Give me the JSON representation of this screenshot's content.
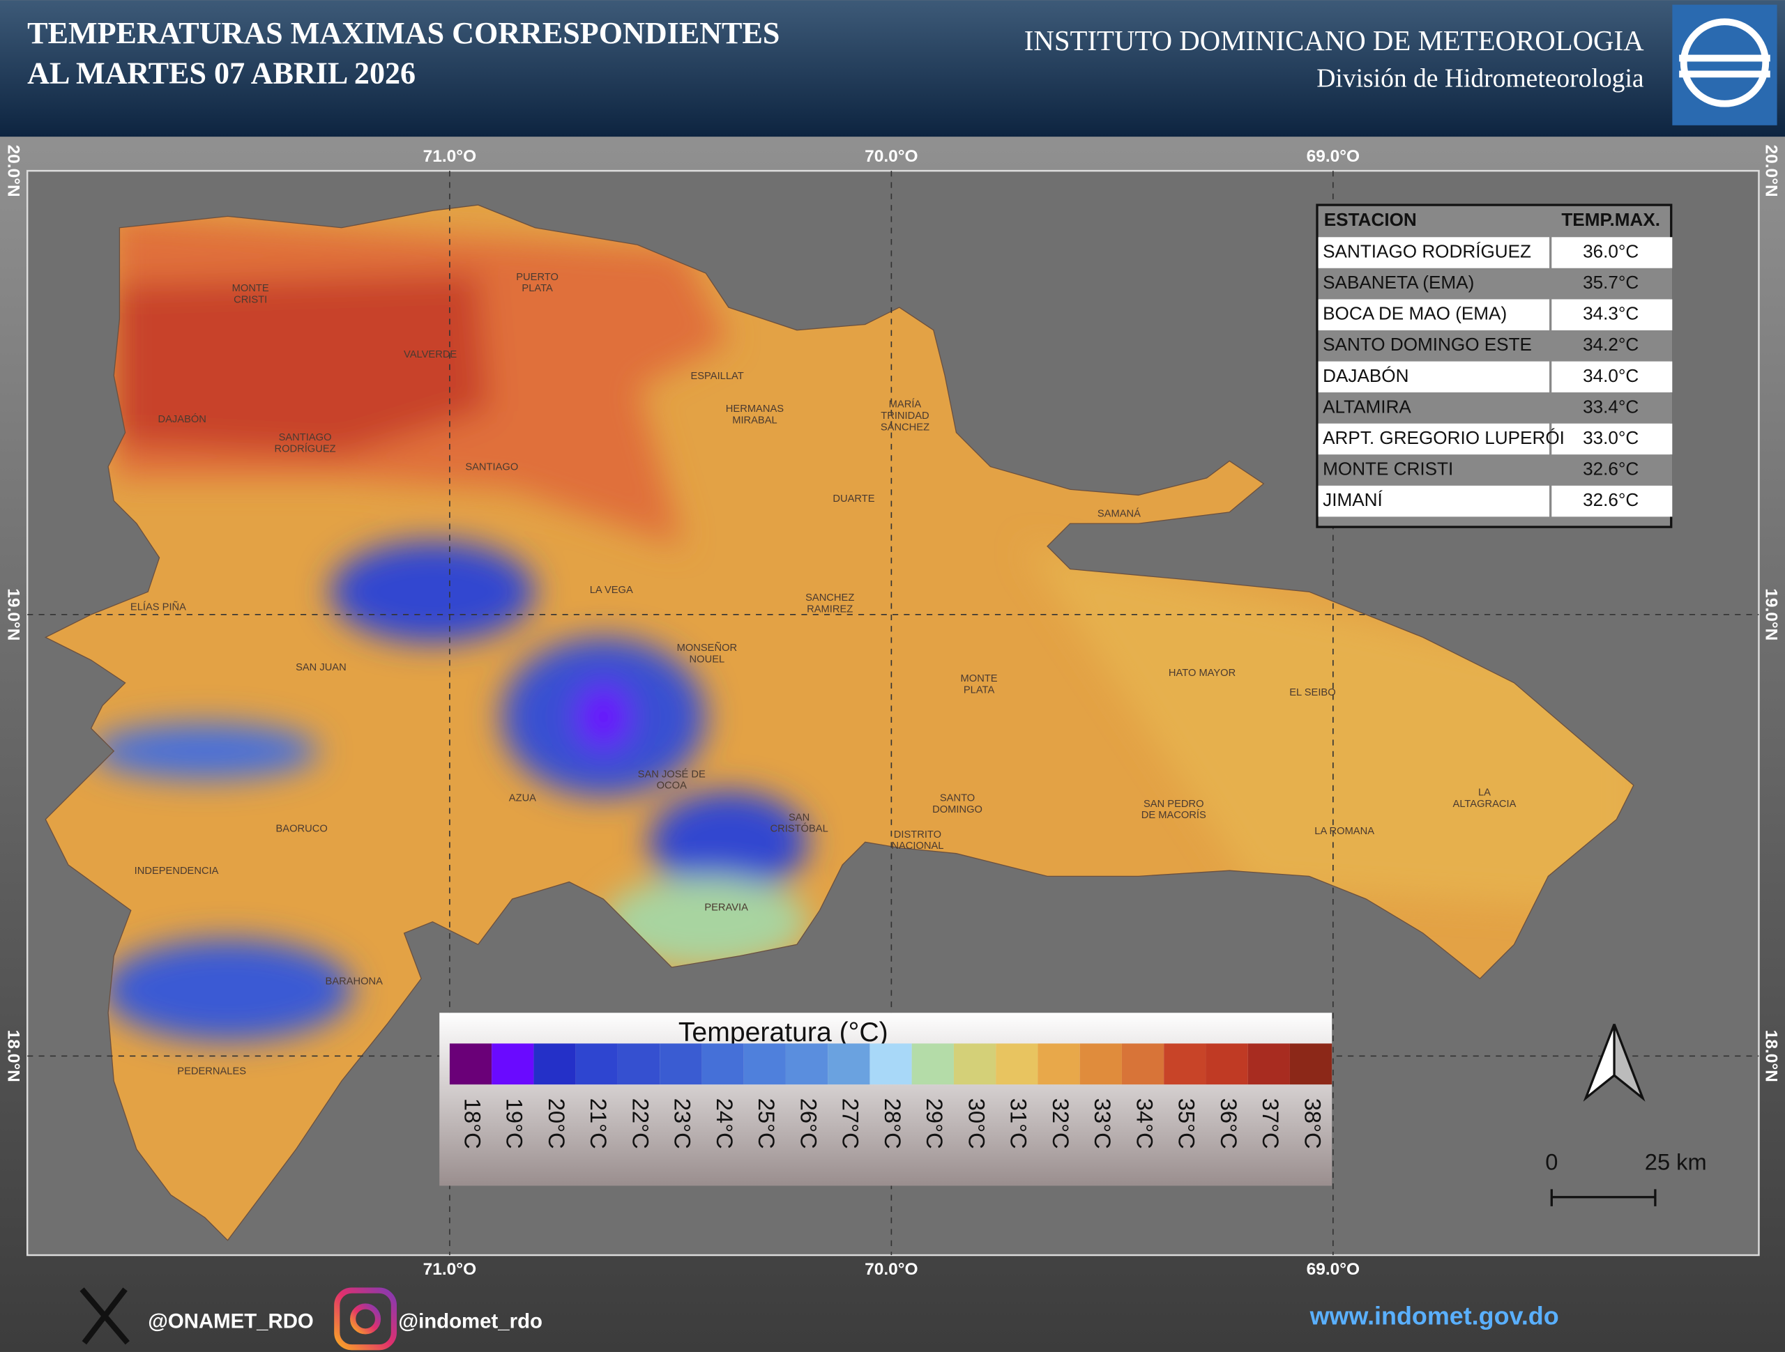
{
  "header": {
    "title": [
      "TEMPERATURAS MAXIMAS CORRESPONDIENTES",
      "AL MARTES 07  ABRIL 2026"
    ],
    "institute": "INSTITUTO DOMINICANO DE METEOROLOGIA",
    "division": "División de Hidrometeorologia"
  },
  "map": {
    "lon_labels": [
      "71.0°O",
      "70.0°O",
      "69.0°O"
    ],
    "lat_labels": [
      "20.0°N",
      "19.0°N",
      "18.0°N"
    ],
    "places": [
      [
        "MONTE",
        "CRISTI"
      ],
      [
        "PUERTO",
        "PLATA"
      ],
      [
        "VALVERDE"
      ],
      [
        "ESPAILLAT"
      ],
      [
        "HERMANAS",
        "MIRABAL"
      ],
      [
        "MARÍA",
        "TRINIDAD",
        "SÁNCHEZ"
      ],
      [
        "DAJABÓN"
      ],
      [
        "SANTIAGO",
        "RODRÍGUEZ"
      ],
      [
        "SANTIAGO"
      ],
      [
        "DUARTE"
      ],
      [
        "SAMANÁ"
      ],
      [
        "LA VEGA"
      ],
      [
        "SANCHEZ",
        "RAMIREZ"
      ],
      [
        "ELÍAS PIÑA"
      ],
      [
        "MONSEÑOR",
        "NOUEL"
      ],
      [
        "SAN JUAN"
      ],
      [
        "HATO MAYOR"
      ],
      [
        "MONTE",
        "PLATA"
      ],
      [
        "EL SEIBO"
      ],
      [
        "SAN JOSÉ DE",
        "OCOA"
      ],
      [
        "AZUA"
      ],
      [
        "LA",
        "ALTAGRACIA"
      ],
      [
        "SANTO",
        "DOMINGO"
      ],
      [
        "SAN PEDRO",
        "DE MACORÍS"
      ],
      [
        "SAN",
        "CRISTÓBAL"
      ],
      [
        "BAORUCO"
      ],
      [
        "LA ROMANA"
      ],
      [
        "DISTRITO",
        "NACIONAL"
      ],
      [
        "INDEPENDENCIA"
      ],
      [
        "PERAVIA"
      ],
      [
        "BARAHONA"
      ],
      [
        "PEDERNALES"
      ]
    ]
  },
  "table": {
    "headers": [
      "ESTACION",
      "TEMP.MAX."
    ],
    "rows": [
      [
        "SANTIAGO RODRÍGUEZ",
        "36.0°C"
      ],
      [
        "SABANETA (EMA)",
        "35.7°C"
      ],
      [
        "BOCA DE MAO (EMA)",
        "34.3°C"
      ],
      [
        "SANTO DOMINGO ESTE",
        "34.2°C"
      ],
      [
        "DAJABÓN",
        "34.0°C"
      ],
      [
        "ALTAMIRA",
        "33.4°C"
      ],
      [
        "ARPT. GREGORIO LUPERÓI",
        "33.0°C"
      ],
      [
        "MONTE CRISTI",
        "32.6°C"
      ],
      [
        "JIMANÍ",
        "32.6°C"
      ]
    ]
  },
  "legend": {
    "title": "Temperatura (°C)",
    "labels": [
      "18°C",
      "19°C",
      "20°C",
      "21°C",
      "22°C",
      "23°C",
      "24°C",
      "25°C",
      "26°C",
      "27°C",
      "28°C",
      "29°C",
      "30°C",
      "31°C",
      "32°C",
      "33°C",
      "34°C",
      "35°C",
      "36°C",
      "37°C",
      "38°C"
    ],
    "colors": [
      "#6a0078",
      "#6a0aff",
      "#2430c8",
      "#2e45d0",
      "#3550d0",
      "#3a5cd2",
      "#4570d8",
      "#4f80dc",
      "#5a8ede",
      "#6aa2e0",
      "#a8d8f8",
      "#b4dca8",
      "#d4d078",
      "#e8c460",
      "#e8a84a",
      "#e08c3c",
      "#d87438",
      "#c84428",
      "#c03a24",
      "#a82c20",
      "#8c2818"
    ]
  },
  "scale": {
    "labels": [
      "0",
      "25 km"
    ]
  },
  "footer": {
    "x_handle": "@ONAMET_RDO",
    "instagram_handle": "@indomet_rdo",
    "website": "www.indomet.gov.do"
  }
}
